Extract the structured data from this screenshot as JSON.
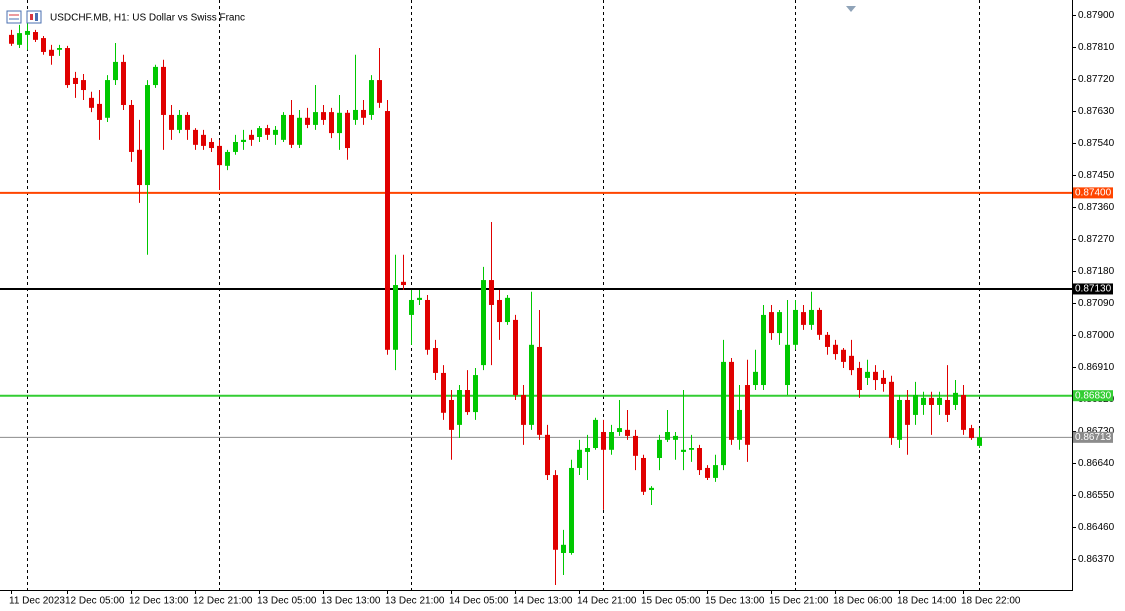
{
  "chart_data": {
    "type": "candlestick",
    "title": "USDCHF.MB, H1:  US Dollar vs Swiss Franc",
    "categories": [
      "11 Dec 2023",
      null,
      null,
      null,
      null,
      null,
      null,
      "12 Dec 05:00",
      null,
      null,
      null,
      null,
      null,
      null,
      null,
      "12 Dec 13:00",
      null,
      null,
      null,
      null,
      null,
      null,
      null,
      "12 Dec 21:00",
      null,
      null,
      null,
      null,
      null,
      null,
      null,
      "13 Dec 05:00",
      null,
      null,
      null,
      null,
      null,
      null,
      null,
      "13 Dec 13:00",
      null,
      null,
      null,
      null,
      null,
      null,
      null,
      "13 Dec 21:00",
      null,
      null,
      null,
      null,
      null,
      null,
      null,
      "14 Dec 05:00",
      null,
      null,
      null,
      null,
      null,
      null,
      null,
      "14 Dec 13:00",
      null,
      null,
      null,
      null,
      null,
      null,
      null,
      "14 Dec 21:00",
      null,
      null,
      null,
      null,
      null,
      null,
      null,
      "15 Dec 05:00",
      null,
      null,
      null,
      null,
      null,
      null,
      null,
      "15 Dec 13:00",
      null,
      null,
      null,
      null,
      null,
      null,
      null,
      "15 Dec 21:00",
      null,
      null,
      null,
      null,
      null,
      null,
      null,
      "18 Dec 06:00",
      null,
      null,
      null,
      null,
      null,
      null,
      null,
      "18 Dec 14:00",
      null,
      null,
      null,
      null,
      null,
      null,
      null,
      "18 Dec 22:00",
      null,
      null
    ],
    "open": [
      0.87844,
      0.87816,
      0.87844,
      0.87852,
      0.87835,
      0.87802,
      0.87802,
      0.87807,
      0.87723,
      0.87717,
      0.87667,
      0.8765,
      0.87611,
      0.87717,
      0.87768,
      0.87647,
      0.87521,
      0.87422,
      0.87703,
      0.87754,
      0.87619,
      0.87577,
      0.87619,
      0.87577,
      0.87563,
      0.87543,
      0.87532,
      0.87476,
      0.87515,
      0.87543,
      0.87563,
      0.87557,
      0.87582,
      0.87563,
      0.87549,
      0.87619,
      0.87535,
      0.87611,
      0.87591,
      0.87627,
      0.87627,
      0.87568,
      0.87625,
      0.87605,
      0.87633,
      0.87619,
      0.87717,
      0.8763,
      0.86959,
      0.8715,
      0.87057,
      0.87099,
      0.87099,
      0.86964,
      0.86894,
      0.86818,
      0.86748,
      0.86846,
      0.86784,
      0.86916,
      0.87155,
      0.87099,
      0.87037,
      0.87043,
      0.86832,
      0.86748,
      0.86967,
      0.8672,
      0.86607,
      0.86388,
      0.86388,
      0.86627,
      0.86672,
      0.86683,
      0.86728,
      0.86678,
      0.86728,
      0.86734,
      0.86717,
      0.86655,
      0.86565,
      0.86655,
      0.86706,
      0.86706,
      0.86672,
      0.86678,
      0.86683,
      0.86627,
      0.86599,
      0.86635,
      0.86925,
      0.86706,
      0.8686,
      0.8686,
      0.8686,
      0.87065,
      0.87006,
      0.8686,
      0.86973,
      0.87065,
      0.87029,
      0.87071,
      0.87001,
      0.86973,
      0.86959,
      0.86942,
      0.86908,
      0.8688,
      0.86897,
      0.8688,
      0.86869,
      0.86706,
      0.86818,
      0.86776,
      0.86804,
      0.86824,
      0.86804,
      0.86818,
      0.86804,
      0.86832,
      0.86739,
      0.86689
    ],
    "high": [
      0.87858,
      0.87872,
      0.8788,
      0.87858,
      0.87841,
      0.87816,
      0.87816,
      0.87813,
      0.8774,
      0.87734,
      0.87684,
      0.87689,
      0.87731,
      0.87821,
      0.87788,
      0.87661,
      0.87605,
      0.87717,
      0.8776,
      0.87774,
      0.87647,
      0.87633,
      0.87627,
      0.87582,
      0.87577,
      0.87554,
      0.87549,
      0.87521,
      0.87563,
      0.87577,
      0.87577,
      0.87588,
      0.87591,
      0.87588,
      0.87627,
      0.87661,
      0.87633,
      0.87639,
      0.87703,
      0.87647,
      0.87639,
      0.87675,
      0.87633,
      0.87788,
      0.87661,
      0.87731,
      0.87807,
      0.87661,
      0.87226,
      0.87226,
      0.87127,
      0.87127,
      0.87113,
      0.86987,
      0.86916,
      0.86846,
      0.8686,
      0.86902,
      0.86908,
      0.87192,
      0.87318,
      0.87127,
      0.87113,
      0.87057,
      0.8686,
      0.87122,
      0.87071,
      0.86748,
      0.86621,
      0.86453,
      0.8665,
      0.86706,
      0.8672,
      0.86768,
      0.86762,
      0.86748,
      0.86818,
      0.8679,
      0.86734,
      0.86664,
      0.86576,
      0.8672,
      0.8679,
      0.86728,
      0.86846,
      0.8672,
      0.86692,
      0.86635,
      0.86664,
      0.86987,
      0.86936,
      0.8686,
      0.86931,
      0.86959,
      0.87085,
      0.87085,
      0.87071,
      0.87099,
      0.87099,
      0.87085,
      0.87122,
      0.87077,
      0.87009,
      0.86987,
      0.86964,
      0.86987,
      0.86925,
      0.86931,
      0.86916,
      0.86902,
      0.86886,
      0.86832,
      0.86846,
      0.86869,
      0.86841,
      0.86841,
      0.86841,
      0.86916,
      0.86874,
      0.8686,
      0.86748,
      0.86739
    ],
    "low": [
      0.87813,
      0.87807,
      0.87802,
      0.87824,
      0.87788,
      0.8776,
      0.87785,
      0.87695,
      0.87667,
      0.87661,
      0.87627,
      0.87549,
      0.87599,
      0.87703,
      0.87633,
      0.87487,
      0.87372,
      0.87226,
      0.87695,
      0.87521,
      0.87549,
      0.87568,
      0.87549,
      0.87521,
      0.87521,
      0.87515,
      0.87408,
      0.87464,
      0.87507,
      0.87521,
      0.87532,
      0.87543,
      0.87549,
      0.87535,
      0.87543,
      0.87526,
      0.87526,
      0.87582,
      0.87577,
      0.87591,
      0.87554,
      0.87521,
      0.87493,
      0.87591,
      0.87591,
      0.87605,
      0.87639,
      0.86945,
      0.86902,
      0.87127,
      0.86973,
      0.87085,
      0.86945,
      0.86874,
      0.86762,
      0.8665,
      0.86711,
      0.86776,
      0.86762,
      0.86902,
      0.86916,
      0.86987,
      0.87029,
      0.86818,
      0.86692,
      0.86734,
      0.86706,
      0.86593,
      0.86298,
      0.86326,
      0.86383,
      0.86607,
      0.86593,
      0.86678,
      0.86509,
      0.86664,
      0.86717,
      0.86706,
      0.86621,
      0.86551,
      0.86523,
      0.86621,
      0.867,
      0.8665,
      0.86621,
      0.86644,
      0.86607,
      0.86593,
      0.86588,
      0.86621,
      0.86692,
      0.86678,
      0.86644,
      0.86846,
      0.86846,
      0.86987,
      0.86973,
      0.86832,
      0.86959,
      0.87015,
      0.87015,
      0.86987,
      0.86945,
      0.86931,
      0.86908,
      0.86888,
      0.86824,
      0.8686,
      0.86846,
      0.86841,
      0.86692,
      0.86683,
      0.86664,
      0.86748,
      0.86776,
      0.8672,
      0.86776,
      0.86756,
      0.8679,
      0.8672,
      0.86706,
      0.86683
    ],
    "close": [
      0.87819,
      0.87849,
      0.87855,
      0.8783,
      0.87796,
      0.87785,
      0.87807,
      0.87703,
      0.87706,
      0.87689,
      0.87639,
      0.87605,
      0.87717,
      0.87768,
      0.87647,
      0.87515,
      0.87422,
      0.87703,
      0.87754,
      0.87619,
      0.87577,
      0.87619,
      0.87577,
      0.87535,
      0.87532,
      0.87526,
      0.87478,
      0.87515,
      0.87543,
      0.87549,
      0.87549,
      0.87582,
      0.87563,
      0.87577,
      0.87619,
      0.87535,
      0.87611,
      0.87591,
      0.87627,
      0.87605,
      0.87568,
      0.87625,
      0.87526,
      0.87633,
      0.87611,
      0.87717,
      0.87653,
      0.86959,
      0.87141,
      0.87141,
      0.87099,
      0.87105,
      0.86959,
      0.86894,
      0.86782,
      0.86734,
      0.86846,
      0.86784,
      0.86888,
      0.87155,
      0.87085,
      0.87037,
      0.87105,
      0.86832,
      0.86748,
      0.86973,
      0.8672,
      0.86607,
      0.86397,
      0.86411,
      0.86627,
      0.86678,
      0.86683,
      0.86762,
      0.86678,
      0.86728,
      0.86739,
      0.86717,
      0.86661,
      0.8656,
      0.86571,
      0.86706,
      0.86728,
      0.86717,
      0.86678,
      0.86683,
      0.86621,
      0.86599,
      0.86635,
      0.86925,
      0.86706,
      0.8679,
      0.86692,
      0.86897,
      0.87057,
      0.87006,
      0.87065,
      0.86973,
      0.87071,
      0.87029,
      0.87071,
      0.87001,
      0.86967,
      0.86947,
      0.86925,
      0.86902,
      0.86846,
      0.86897,
      0.86874,
      0.86863,
      0.86711,
      0.86818,
      0.86748,
      0.86832,
      0.86824,
      0.86804,
      0.86824,
      0.86776,
      0.86838,
      0.86734,
      0.86711,
      0.86713
    ],
    "up_color": "#00c800",
    "down_color": "#e00000",
    "ylim": [
      0.86284,
      0.87942
    ],
    "yticks": [
      {
        "value": 0.879,
        "label": "0.87900"
      },
      {
        "value": 0.8781,
        "label": "0.87810"
      },
      {
        "value": 0.8772,
        "label": "0.87720"
      },
      {
        "value": 0.8763,
        "label": "0.87630"
      },
      {
        "value": 0.8754,
        "label": "0.87540"
      },
      {
        "value": 0.8745,
        "label": "0.87450"
      },
      {
        "value": 0.8736,
        "label": "0.87360"
      },
      {
        "value": 0.8727,
        "label": "0.87270"
      },
      {
        "value": 0.8718,
        "label": "0.87180"
      },
      {
        "value": 0.8709,
        "label": "0.87090"
      },
      {
        "value": 0.87,
        "label": "0.87000"
      },
      {
        "value": 0.8691,
        "label": "0.86910"
      },
      {
        "value": 0.8682,
        "label": "0.86820"
      },
      {
        "value": 0.8673,
        "label": "0.86730"
      },
      {
        "value": 0.8664,
        "label": "0.86640"
      },
      {
        "value": 0.8655,
        "label": "0.86550"
      },
      {
        "value": 0.8646,
        "label": "0.86460"
      },
      {
        "value": 0.8637,
        "label": "0.86370"
      }
    ],
    "period_separators": [
      2,
      26,
      50,
      74,
      98,
      121
    ],
    "levels": [
      {
        "value": 0.874,
        "label": "0.87400",
        "color": "#ff4500"
      },
      {
        "value": 0.8713,
        "label": "0.87130",
        "color": "#000000"
      },
      {
        "value": 0.8683,
        "label": "0.86830",
        "color": "#32cd32"
      }
    ],
    "current_price": {
      "value": 0.86713,
      "label": "0.86713",
      "color": "#8c8c8c"
    }
  }
}
